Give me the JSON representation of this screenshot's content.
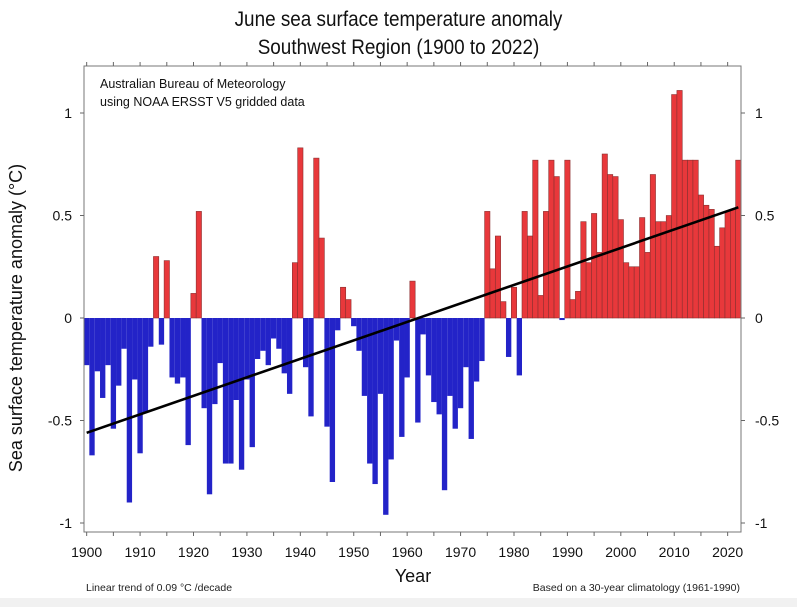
{
  "chart_data": {
    "type": "bar",
    "title": "June sea surface temperature anomaly",
    "subtitle": "Southwest Region (1900 to 2022)",
    "annotation_lines": [
      "Australian Bureau of Meteorology",
      "using NOAA ERSST V5 gridded data"
    ],
    "xlabel": "Year",
    "ylabel": "Sea surface temperature anomaly (°C)",
    "footnote_left": "Linear  trend of 0.09  °C  /decade",
    "footnote_right": "Based on a 30-year climatology (1961-1990)",
    "xlim": [
      1900,
      2022
    ],
    "ylim": [
      -1.05,
      1.25
    ],
    "x_ticks": [
      "1900",
      "1910",
      "1920",
      "1930",
      "1940",
      "1950",
      "1960",
      "1970",
      "1980",
      "1990",
      "2000",
      "2010",
      "2020"
    ],
    "y_ticks": [
      "-1",
      "-0.5",
      "0",
      "0.5",
      "1"
    ],
    "y_tick_values": [
      -1,
      -0.5,
      0,
      0.5,
      1
    ],
    "grid": false,
    "positive_color": "#e8383b",
    "negative_color": "#2323c8",
    "trend_color": "#000000",
    "trend": {
      "start_year": 1900,
      "start_value": -0.56,
      "end_year": 2022,
      "end_value": 0.54
    },
    "years_start": 1900,
    "values": [
      -0.23,
      -0.67,
      -0.26,
      -0.39,
      -0.23,
      -0.54,
      -0.33,
      -0.15,
      -0.9,
      -0.3,
      -0.66,
      -0.46,
      -0.14,
      0.3,
      -0.13,
      0.28,
      -0.29,
      -0.32,
      -0.29,
      -0.62,
      0.12,
      0.52,
      -0.44,
      -0.86,
      -0.42,
      -0.22,
      -0.71,
      -0.71,
      -0.4,
      -0.74,
      -0.3,
      -0.63,
      -0.2,
      -0.16,
      -0.23,
      -0.1,
      -0.15,
      -0.27,
      -0.37,
      0.27,
      0.83,
      -0.24,
      -0.48,
      0.78,
      0.39,
      -0.53,
      -0.8,
      -0.06,
      0.15,
      0.09,
      -0.04,
      -0.16,
      -0.38,
      -0.71,
      -0.81,
      -0.37,
      -0.96,
      -0.69,
      -0.11,
      -0.58,
      -0.29,
      0.18,
      -0.51,
      -0.08,
      -0.28,
      -0.41,
      -0.47,
      -0.84,
      -0.38,
      -0.54,
      -0.44,
      -0.24,
      -0.59,
      -0.31,
      -0.21,
      0.52,
      0.24,
      0.4,
      0.08,
      -0.19,
      0.15,
      -0.28,
      0.52,
      0.4,
      0.77,
      0.11,
      0.52,
      0.77,
      0.69,
      -0.01,
      0.77,
      0.09,
      0.13,
      0.47,
      0.27,
      0.51,
      0.32,
      0.8,
      0.7,
      0.69,
      0.48,
      0.27,
      0.25,
      0.25,
      0.49,
      0.32,
      0.7,
      0.47,
      0.47,
      0.5,
      1.09,
      1.11,
      0.77,
      0.77,
      0.77,
      0.6,
      0.55,
      0.53,
      0.35,
      0.44,
      0.52,
      0.53,
      0.77
    ]
  }
}
